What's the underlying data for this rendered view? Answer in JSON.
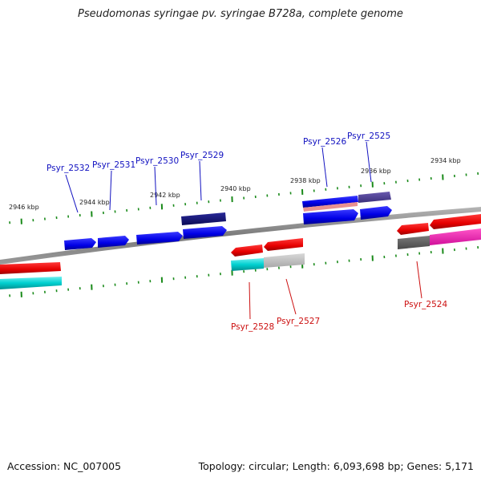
{
  "title": "Pseudomonas syringae pv. syringae B728a, complete genome",
  "footer": {
    "accession": "Accession: NC_007005",
    "summary": "Topology: circular; Length: 6,093,698 bp; Genes: 5,171"
  },
  "colors": {
    "label_top": "#1010c0",
    "label_bottom": "#cc1010",
    "tick": "#1a8a1a",
    "backbone": "#888888"
  },
  "ruler": {
    "labels": [
      "2946 kbp",
      "2944 kbp",
      "2942 kbp",
      "2940 kbp",
      "2938 kbp",
      "2936 kbp",
      "2934 kbp"
    ]
  },
  "genes_top": [
    "Psyr_2532",
    "Psyr_2531",
    "Psyr_2530",
    "Psyr_2529",
    "Psyr_2526",
    "Psyr_2525"
  ],
  "genes_bottom": [
    "Psyr_2528",
    "Psyr_2527",
    "Psyr_2524"
  ]
}
